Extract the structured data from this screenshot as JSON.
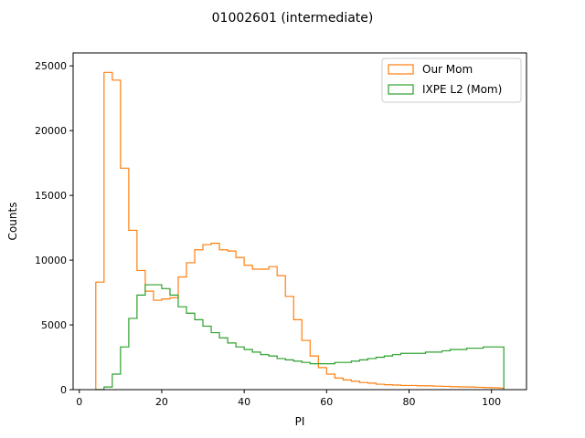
{
  "chart_data": {
    "type": "histogram",
    "title": "01002601 (intermediate)",
    "xlabel": "PI",
    "ylabel": "Counts",
    "xlim": [
      -1.5,
      108.5
    ],
    "ylim": [
      0,
      26000
    ],
    "xticks": [
      0,
      20,
      40,
      60,
      80,
      100
    ],
    "yticks": [
      0,
      5000,
      10000,
      15000,
      20000,
      25000
    ],
    "xtick_labels": [
      "0",
      "20",
      "40",
      "60",
      "80",
      "100"
    ],
    "ytick_labels": [
      "0",
      "5000",
      "10000",
      "15000",
      "20000",
      "25000"
    ],
    "grid": false,
    "legend_position": "top-right",
    "bin_edges": [
      4,
      6,
      8,
      10,
      12,
      14,
      16,
      18,
      20,
      22,
      24,
      26,
      28,
      30,
      32,
      34,
      36,
      38,
      40,
      42,
      44,
      46,
      48,
      50,
      52,
      54,
      56,
      58,
      60,
      62,
      64,
      66,
      68,
      70,
      72,
      74,
      76,
      78,
      80,
      82,
      84,
      86,
      88,
      90,
      92,
      94,
      96,
      98,
      100,
      102,
      103
    ],
    "series": [
      {
        "name": "Our Mom",
        "color": "#ff7f0e",
        "values": [
          8300,
          24500,
          23900,
          17100,
          12300,
          9200,
          7600,
          6900,
          7000,
          7100,
          8700,
          9800,
          10800,
          11200,
          11300,
          10800,
          10700,
          10200,
          9600,
          9300,
          9300,
          9500,
          8800,
          7200,
          5400,
          3800,
          2600,
          1700,
          1200,
          900,
          750,
          650,
          550,
          500,
          420,
          380,
          350,
          320,
          320,
          300,
          290,
          270,
          250,
          230,
          210,
          200,
          180,
          160,
          140,
          120
        ]
      },
      {
        "name": "IXPE L2 (Mom)",
        "color": "#2ca02c",
        "values": [
          0,
          200,
          1200,
          3300,
          5500,
          7300,
          8100,
          8100,
          7800,
          7300,
          6400,
          5900,
          5400,
          4900,
          4400,
          4000,
          3600,
          3300,
          3100,
          2900,
          2700,
          2600,
          2400,
          2300,
          2200,
          2100,
          2000,
          2000,
          2000,
          2100,
          2100,
          2200,
          2300,
          2400,
          2500,
          2600,
          2700,
          2800,
          2800,
          2800,
          2900,
          2900,
          3000,
          3100,
          3100,
          3200,
          3200,
          3300,
          3300,
          3300
        ]
      }
    ]
  }
}
